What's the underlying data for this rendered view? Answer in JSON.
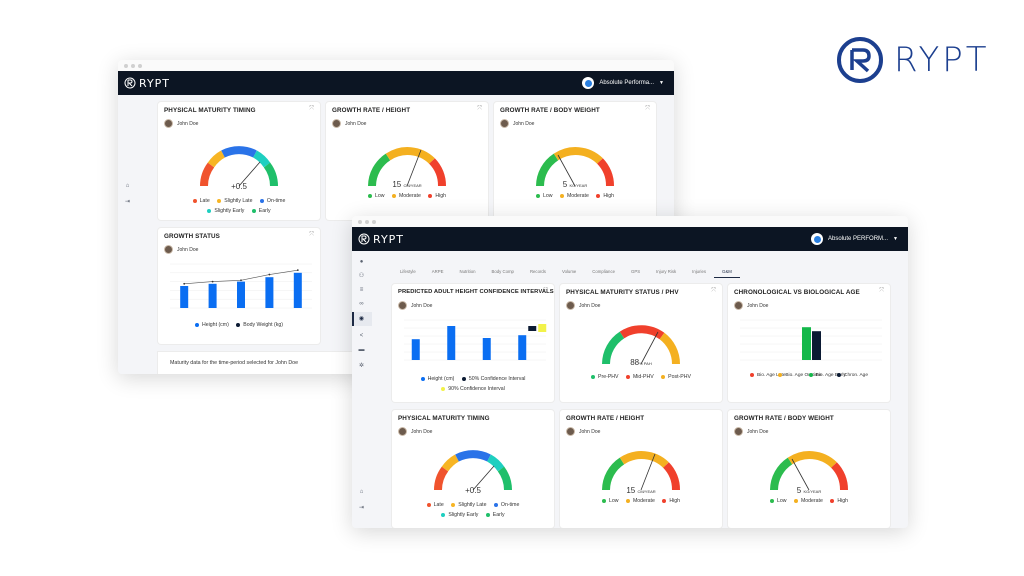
{
  "brand": {
    "name": "RYPT",
    "color": "#1c3f8f"
  },
  "app": {
    "logo_text": "RYPT",
    "account_back": "Absolute Performa...",
    "account_front": "Absolute PERFORM..."
  },
  "colors": {
    "late": "#f0532d",
    "slightly_late": "#f7b524",
    "on_time": "#2a73e8",
    "slightly_early": "#1ecfc0",
    "early": "#1fbf6a",
    "low": "#2cbc4e",
    "moderate": "#f4b020",
    "high": "#f0402c",
    "bar_blue": "#0a6ef2",
    "bar_navy": "#0b1a33",
    "bar_green": "#14b84a",
    "bar_yellow": "#f2f24a"
  },
  "back": {
    "pmt": {
      "title": "PHYSICAL MATURITY TIMING",
      "person": "John Doe",
      "value": "+0.5",
      "legend": [
        "Late",
        "Slightly Late",
        "On-time",
        "Slightly Early",
        "Early"
      ]
    },
    "grh": {
      "title": "GROWTH RATE / HEIGHT",
      "person": "John Doe",
      "value": "15",
      "unit": "CM/YEAR",
      "legend": [
        "Low",
        "Moderate",
        "High"
      ]
    },
    "grw": {
      "title": "GROWTH RATE / BODY WEIGHT",
      "person": "John Doe",
      "value": "5",
      "unit": "KG/YEAR",
      "legend": [
        "Low",
        "Moderate",
        "High"
      ]
    },
    "gs": {
      "title": "GROWTH STATUS",
      "person": "John Doe",
      "legend": [
        "Height (cm)",
        "Body Weight (kg)"
      ]
    },
    "footer": "Maturity data for the time-period selected for John Doe"
  },
  "front": {
    "tabs": [
      "Lifestyle",
      "ARPE",
      "Nutrition",
      "Body Comp",
      "Records",
      "Volume",
      "Compliance",
      "GPS",
      "Injury Risk",
      "Injuries",
      "G&M"
    ],
    "active_tab": "G&M",
    "phci": {
      "title": "PREDICTED ADULT HEIGHT CONFIDENCE INTERVALS",
      "person": "John Doe",
      "legend": [
        "Height (cm)",
        "50% Confidence Interval",
        "90% Confidence Interval"
      ]
    },
    "pms": {
      "title": "PHYSICAL MATURITY STATUS / PHV",
      "person": "John Doe",
      "value": "88",
      "unit": "% PAH",
      "legend": [
        "Pre-PHV",
        "Mid-PHV",
        "Post-PHV"
      ]
    },
    "cba": {
      "title": "CHRONOLOGICAL VS BIOLOGICAL AGE",
      "person": "John Doe",
      "legend": [
        "Bio. Age Late",
        "Bio. Age On-time",
        "Bio. Age Early",
        "Chron. Age"
      ]
    },
    "pmt": {
      "title": "PHYSICAL MATURITY TIMING",
      "person": "John Doe",
      "value": "+0.5",
      "legend": [
        "Late",
        "Slightly Late",
        "On-time",
        "Slightly Early",
        "Early"
      ]
    },
    "grh": {
      "title": "GROWTH RATE / HEIGHT",
      "person": "John Doe",
      "value": "15",
      "unit": "CM/YEAR",
      "legend": [
        "Low",
        "Moderate",
        "High"
      ]
    },
    "grw": {
      "title": "GROWTH RATE / BODY WEIGHT",
      "person": "John Doe",
      "value": "5",
      "unit": "KG/YEAR",
      "legend": [
        "Low",
        "Moderate",
        "High"
      ]
    }
  },
  "chart_data": [
    {
      "type": "bar",
      "name_ref": "back-growth-status",
      "values": [
        5,
        5.5,
        6,
        7,
        8
      ],
      "line": [
        5.5,
        6,
        6.3,
        7.6,
        8.6
      ],
      "ylim": [
        0,
        10
      ]
    },
    {
      "type": "bar",
      "name_ref": "front-height-ci",
      "values": [
        5.2,
        8.5,
        5.5,
        6.2
      ],
      "ylim": [
        0,
        10
      ]
    },
    {
      "type": "bar",
      "name_ref": "front-chron-bio-age",
      "values": [
        8.2,
        7.2
      ],
      "ylim": [
        0,
        10
      ]
    }
  ]
}
